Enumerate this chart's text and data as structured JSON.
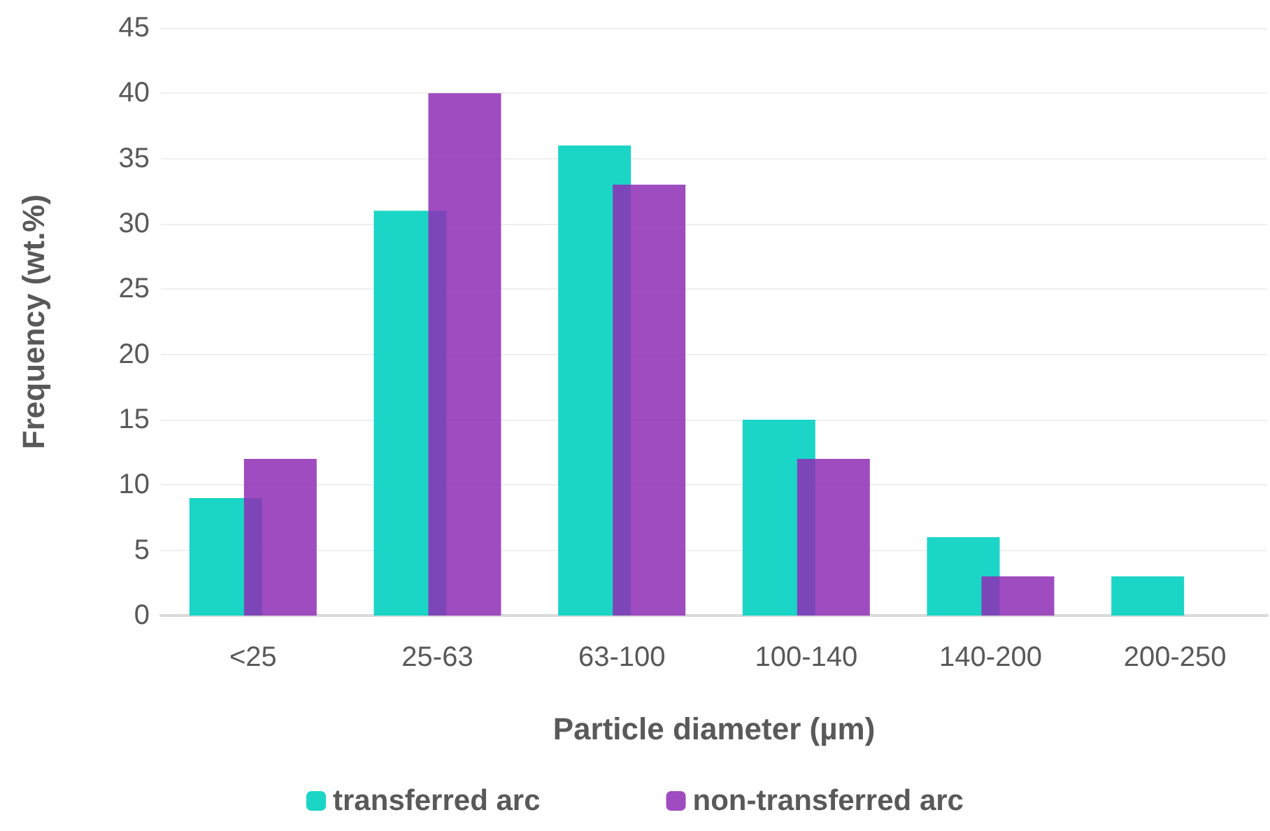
{
  "chart_data": {
    "type": "bar",
    "xlabel": "Particle diameter (µm)",
    "ylabel": "Frequency (wt.%)",
    "categories": [
      "<25",
      "25-63",
      "63-100",
      "100-140",
      "140-200",
      "200-250"
    ],
    "series": [
      {
        "name": "transferred arc",
        "color": "#0fd3c3",
        "values": [
          9,
          31,
          36,
          15,
          6,
          3
        ]
      },
      {
        "name": "non-transferred arc",
        "color": "#8e2db5",
        "values": [
          12,
          40,
          33,
          12,
          3,
          null
        ]
      }
    ],
    "ylim": [
      0,
      45
    ],
    "yticks": [
      0,
      5,
      10,
      15,
      20,
      25,
      30,
      35,
      40,
      45
    ],
    "grid": "y",
    "legend": "bottom"
  }
}
